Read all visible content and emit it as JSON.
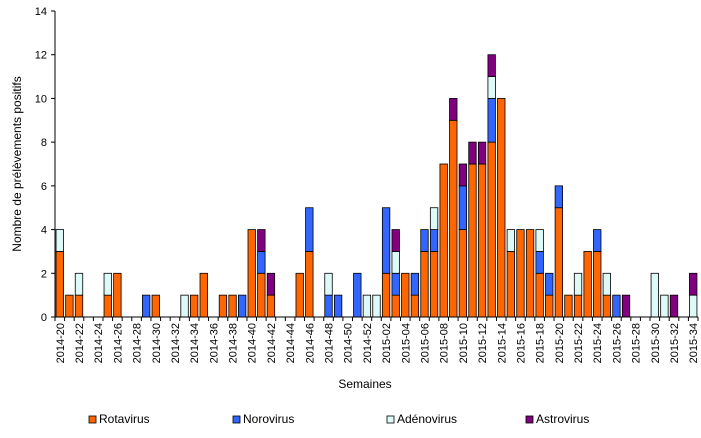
{
  "chart_data": {
    "type": "bar",
    "stacked": true,
    "xlabel": "Semaines",
    "ylabel": "Nombre de prélèvements positifs",
    "ylim": [
      0,
      14
    ],
    "ytick_step": 2,
    "grid": false,
    "legend_position": "bottom",
    "categories": [
      "2014-20",
      "2014-21",
      "2014-22",
      "2014-23",
      "2014-24",
      "2014-25",
      "2014-26",
      "2014-27",
      "2014-28",
      "2014-29",
      "2014-30",
      "2014-31",
      "2014-32",
      "2014-33",
      "2014-34",
      "2014-35",
      "2014-36",
      "2014-37",
      "2014-38",
      "2014-39",
      "2014-40",
      "2014-41",
      "2014-42",
      "2014-43",
      "2014-44",
      "2014-45",
      "2014-46",
      "2014-47",
      "2014-48",
      "2014-49",
      "2014-50",
      "2014-51",
      "2014-52",
      "2015-01",
      "2015-02",
      "2015-03",
      "2015-04",
      "2015-05",
      "2015-06",
      "2015-07",
      "2015-08",
      "2015-09",
      "2015-10",
      "2015-11",
      "2015-12",
      "2015-13",
      "2015-14",
      "2015-15",
      "2015-16",
      "2015-17",
      "2015-18",
      "2015-19",
      "2015-20",
      "2015-21",
      "2015-22",
      "2015-23",
      "2015-24",
      "2015-25",
      "2015-26",
      "2015-27",
      "2015-28",
      "2015-29",
      "2015-30",
      "2015-31",
      "2015-32",
      "2015-33",
      "2015-34"
    ],
    "tick_labels": [
      "2014-20",
      "2014-22",
      "2014-24",
      "2014-26",
      "2014-28",
      "2014-30",
      "2014-32",
      "2014-34",
      "2014-36",
      "2014-38",
      "2014-40",
      "2014-42",
      "2014-44",
      "2014-46",
      "2014-48",
      "2014-50",
      "2014-52",
      "2015-02",
      "2015-04",
      "2015-06",
      "2015-08",
      "2015-10",
      "2015-12",
      "2015-14",
      "2015-16",
      "2015-18",
      "2015-20",
      "2015-22",
      "2015-24",
      "2015-26",
      "2015-28",
      "2015-30",
      "2015-32",
      "2015-34"
    ],
    "series": [
      {
        "name": "Rotavirus",
        "color": "#ff6600",
        "values": [
          3,
          1,
          1,
          0,
          0,
          1,
          2,
          0,
          0,
          0,
          1,
          0,
          0,
          0,
          1,
          2,
          0,
          1,
          1,
          0,
          4,
          2,
          1,
          0,
          0,
          2,
          3,
          0,
          0,
          0,
          0,
          0,
          0,
          0,
          2,
          1,
          2,
          1,
          3,
          3,
          7,
          9,
          4,
          7,
          7,
          8,
          10,
          3,
          4,
          4,
          2,
          1,
          5,
          1,
          1,
          3,
          3,
          1,
          0,
          0,
          0,
          0,
          0,
          0,
          0,
          0,
          0
        ]
      },
      {
        "name": "Norovirus",
        "color": "#3366ff",
        "values": [
          0,
          0,
          0,
          0,
          0,
          0,
          0,
          0,
          0,
          1,
          0,
          0,
          0,
          0,
          0,
          0,
          0,
          0,
          0,
          1,
          0,
          1,
          0,
          0,
          0,
          0,
          2,
          0,
          1,
          1,
          0,
          2,
          0,
          0,
          3,
          1,
          0,
          1,
          1,
          1,
          0,
          0,
          2,
          0,
          0,
          2,
          0,
          0,
          0,
          0,
          1,
          1,
          1,
          0,
          0,
          0,
          1,
          0,
          1,
          0,
          0,
          0,
          0,
          0,
          0,
          0,
          0
        ]
      },
      {
        "name": "Adénovirus",
        "color": "#ddfaf8",
        "values": [
          1,
          0,
          1,
          0,
          0,
          1,
          0,
          0,
          0,
          0,
          0,
          0,
          0,
          1,
          0,
          0,
          0,
          0,
          0,
          0,
          0,
          0,
          0,
          0,
          0,
          0,
          0,
          0,
          1,
          0,
          0,
          0,
          1,
          1,
          0,
          1,
          0,
          0,
          0,
          1,
          0,
          0,
          0,
          0,
          0,
          1,
          0,
          1,
          0,
          0,
          1,
          0,
          0,
          0,
          1,
          0,
          0,
          1,
          0,
          0,
          0,
          0,
          2,
          1,
          0,
          0,
          1
        ]
      },
      {
        "name": "Astrovirus",
        "color": "#800080",
        "values": [
          0,
          0,
          0,
          0,
          0,
          0,
          0,
          0,
          0,
          0,
          0,
          0,
          0,
          0,
          0,
          0,
          0,
          0,
          0,
          0,
          0,
          1,
          1,
          0,
          0,
          0,
          0,
          0,
          0,
          0,
          0,
          0,
          0,
          0,
          0,
          1,
          0,
          0,
          0,
          0,
          0,
          1,
          1,
          1,
          1,
          1,
          0,
          0,
          0,
          0,
          0,
          0,
          0,
          0,
          0,
          0,
          0,
          0,
          0,
          1,
          0,
          0,
          0,
          0,
          1,
          0,
          1
        ]
      }
    ]
  }
}
